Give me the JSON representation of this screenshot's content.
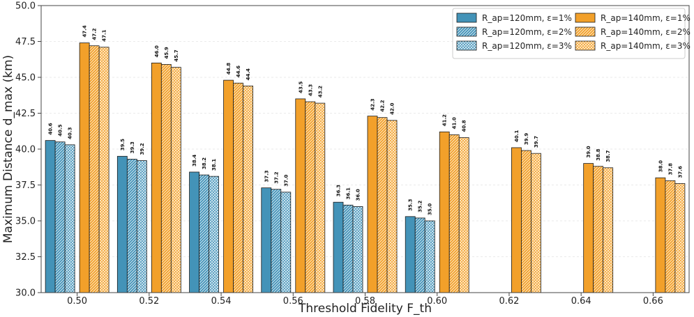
{
  "chart_data": {
    "type": "bar",
    "title": "",
    "xlabel": "Threshold Fidelity F_th",
    "ylabel": "Maximum Distance d_max (km)",
    "ylim": [
      30.0,
      50.0
    ],
    "yticks": [
      "30.0",
      "32.5",
      "35.0",
      "37.5",
      "40.0",
      "42.5",
      "45.0",
      "47.5",
      "50.0"
    ],
    "categories": [
      "0.50",
      "0.52",
      "0.54",
      "0.56",
      "0.58",
      "0.60",
      "0.62",
      "0.64",
      "0.66"
    ],
    "grid": true,
    "legend_position": "top-right",
    "colors": {
      "blue": "#4393b8",
      "orange": "#f2a02a"
    },
    "series": [
      {
        "name": "R_ap=120mm, ε=1%",
        "color": "blue",
        "pattern": "solid",
        "values": [
          40.6,
          39.5,
          38.4,
          37.3,
          36.3,
          35.3,
          null,
          null,
          null
        ],
        "labels": [
          "40.6",
          "39.5",
          "38.4",
          "37.3",
          "36.3",
          "35.3",
          "",
          "",
          ""
        ]
      },
      {
        "name": "R_ap=120mm, ε=2%",
        "color": "blue",
        "pattern": "hatch",
        "values": [
          40.5,
          39.3,
          38.2,
          37.2,
          36.1,
          35.2,
          null,
          null,
          null
        ],
        "labels": [
          "40.5",
          "39.3",
          "38.2",
          "37.2",
          "36.1",
          "35.2",
          "",
          "",
          ""
        ]
      },
      {
        "name": "R_ap=120mm, ε=3%",
        "color": "blue",
        "pattern": "cross",
        "values": [
          40.3,
          39.2,
          38.1,
          37.0,
          36.0,
          35.0,
          null,
          null,
          null
        ],
        "labels": [
          "40.3",
          "39.2",
          "38.1",
          "37.0",
          "36.0",
          "35.0",
          "",
          "",
          ""
        ]
      },
      {
        "name": "R_ap=140mm, ε=1%",
        "color": "orange",
        "pattern": "solid",
        "values": [
          47.4,
          46.0,
          44.8,
          43.5,
          42.3,
          41.2,
          40.1,
          39.0,
          38.0
        ],
        "labels": [
          "47.4",
          "46.0",
          "44.8",
          "43.5",
          "42.3",
          "41.2",
          "40.1",
          "39.0",
          "38.0"
        ]
      },
      {
        "name": "R_ap=140mm, ε=2%",
        "color": "orange",
        "pattern": "hatch",
        "values": [
          47.2,
          45.9,
          44.6,
          43.3,
          42.2,
          41.0,
          39.9,
          38.8,
          37.8
        ],
        "labels": [
          "47.2",
          "45.9",
          "44.6",
          "43.3",
          "42.2",
          "41.0",
          "39.9",
          "38.8",
          "37.8"
        ]
      },
      {
        "name": "R_ap=140mm, ε=3%",
        "color": "orange",
        "pattern": "cross",
        "values": [
          47.1,
          45.7,
          44.4,
          43.2,
          42.0,
          40.8,
          39.7,
          38.7,
          37.6
        ],
        "labels": [
          "47.1",
          "45.7",
          "44.4",
          "43.2",
          "42.0",
          "40.8",
          "39.7",
          "38.7",
          "37.6"
        ]
      }
    ]
  }
}
